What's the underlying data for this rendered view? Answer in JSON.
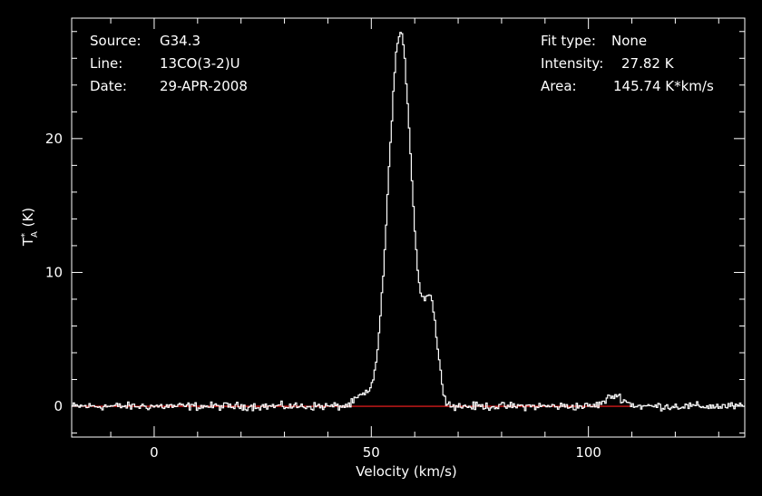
{
  "chart_data": {
    "type": "line",
    "header_left": [
      {
        "label": "Source:",
        "value": "G34.3"
      },
      {
        "label": "Line:",
        "value": "13CO(3-2)U"
      },
      {
        "label": "Date:",
        "value": "29-APR-2008"
      }
    ],
    "header_right": [
      {
        "label": "Fit type:",
        "value": "None"
      },
      {
        "label": "Intensity:",
        "value": "27.82 K"
      },
      {
        "label": "Area:",
        "value": "145.74 K*km/s"
      }
    ],
    "xlabel": "Velocity (km/s)",
    "ylabel": "T*A (K)",
    "xlim": [
      -19,
      136
    ],
    "ylim": [
      -2.3,
      29.0
    ],
    "x_ticks": [
      0,
      50,
      100
    ],
    "y_ticks": [
      0,
      10,
      20
    ],
    "grid": false,
    "baseline": {
      "y": 0,
      "x_range": [
        -19,
        110
      ],
      "color": "#ff2020"
    },
    "line_color": "#ffffff",
    "background": "#000000",
    "peaks": [
      {
        "x": 56.5,
        "y": 27.82,
        "width_kmps": 2.7
      },
      {
        "x": 63.5,
        "y": 7.3,
        "width_kmps": 1.55
      }
    ],
    "bumps": [
      {
        "x": 47.5,
        "y": 0.7,
        "width_kmps": 1.4
      },
      {
        "x": 106.0,
        "y": 0.8,
        "width_kmps": 2.0
      }
    ],
    "noise_rms": 0.18,
    "channel_width_kmps": 0.33
  }
}
